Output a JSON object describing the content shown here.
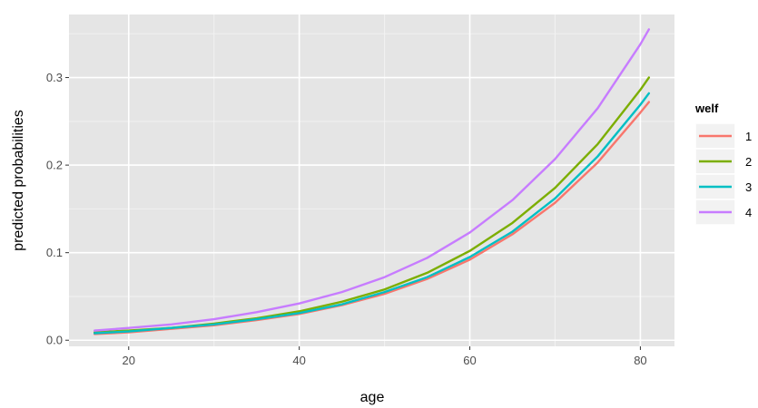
{
  "chart_data": {
    "type": "line",
    "xlabel": "age",
    "ylabel": "predicted probabilities",
    "xlim": [
      13,
      84
    ],
    "ylim": [
      -0.007,
      0.372
    ],
    "x_ticks": [
      20,
      40,
      60,
      80
    ],
    "x_tick_labels": [
      "20",
      "40",
      "60",
      "80"
    ],
    "y_ticks": [
      0.0,
      0.1,
      0.2,
      0.3
    ],
    "y_tick_labels": [
      "0.0",
      "0.1",
      "0.2",
      "0.3"
    ],
    "grid": true,
    "legend": {
      "title": "welf",
      "position": "right"
    },
    "x": [
      16,
      20,
      25,
      30,
      35,
      40,
      45,
      50,
      55,
      60,
      65,
      70,
      75,
      80,
      81
    ],
    "series": [
      {
        "name": "1",
        "color": "#F8766D",
        "values": [
          0.007,
          0.009,
          0.013,
          0.017,
          0.023,
          0.03,
          0.04,
          0.053,
          0.07,
          0.092,
          0.121,
          0.157,
          0.203,
          0.26,
          0.272
        ]
      },
      {
        "name": "2",
        "color": "#7CAE00",
        "values": [
          0.009,
          0.011,
          0.014,
          0.019,
          0.025,
          0.033,
          0.044,
          0.058,
          0.077,
          0.102,
          0.134,
          0.174,
          0.224,
          0.286,
          0.3
        ]
      },
      {
        "name": "3",
        "color": "#00BFC4",
        "values": [
          0.008,
          0.01,
          0.014,
          0.018,
          0.024,
          0.031,
          0.041,
          0.055,
          0.072,
          0.095,
          0.124,
          0.162,
          0.21,
          0.269,
          0.282
        ]
      },
      {
        "name": "4",
        "color": "#C77CFF",
        "values": [
          0.011,
          0.014,
          0.018,
          0.024,
          0.032,
          0.042,
          0.055,
          0.072,
          0.094,
          0.123,
          0.16,
          0.207,
          0.265,
          0.338,
          0.355
        ]
      }
    ]
  }
}
